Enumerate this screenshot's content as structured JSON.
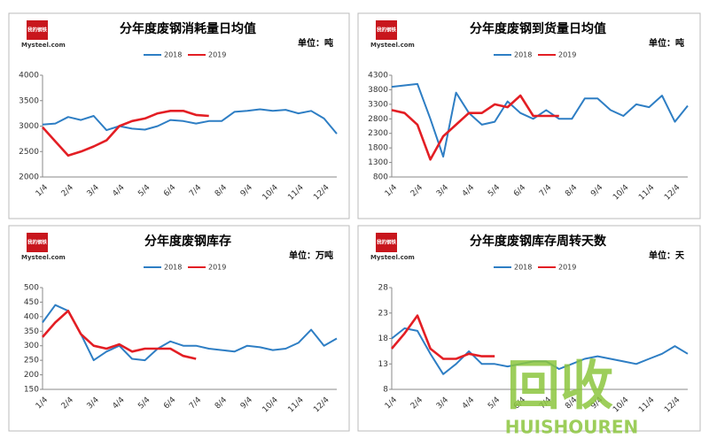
{
  "logo": {
    "mark": "我的钢铁",
    "site": "Mysteel.com"
  },
  "watermark": {
    "big": "回收",
    "small": "HUISHOUREN"
  },
  "chart_data": [
    {
      "type": "line",
      "title": "分年度废钢消耗量日均值",
      "unit": "单位：吨",
      "categories": [
        "1/4",
        null,
        "2/4",
        null,
        "3/4",
        null,
        "4/4",
        null,
        "5/4",
        null,
        "6/4",
        null,
        "7/4",
        null,
        "8/4",
        null,
        "9/4",
        null,
        "10/4",
        null,
        "11/4",
        null,
        "12/4",
        null
      ],
      "series": [
        {
          "name": "2018",
          "color": "#2e7ec4",
          "values": [
            3030,
            3050,
            3180,
            3120,
            3200,
            2920,
            3000,
            2950,
            2930,
            3000,
            3120,
            3100,
            3050,
            3100,
            3100,
            3280,
            3300,
            3330,
            3300,
            3320,
            3250,
            3300,
            3150,
            2850
          ]
        },
        {
          "name": "2019",
          "color": "#e31e24",
          "values": [
            2980,
            2700,
            2420,
            2500,
            2600,
            2720,
            3000,
            3100,
            3150,
            3250,
            3300,
            3300,
            3220,
            3200,
            null,
            null,
            null,
            null,
            null,
            null,
            null,
            null,
            null,
            null
          ]
        }
      ],
      "ylim": [
        2000,
        4000
      ],
      "yticks": [
        2000,
        2500,
        3000,
        3500,
        4000
      ]
    },
    {
      "type": "line",
      "title": "分年度废钢到货量日均值",
      "unit": "单位：吨",
      "categories": [
        "1/4",
        null,
        "2/4",
        null,
        "3/4",
        null,
        "4/4",
        null,
        "5/4",
        null,
        "6/4",
        null,
        "7/4",
        null,
        "8/4",
        null,
        "9/4",
        null,
        "10/4",
        null,
        "11/4",
        null,
        "12/4",
        null
      ],
      "series": [
        {
          "name": "2018",
          "color": "#2e7ec4",
          "values": [
            3900,
            3950,
            4000,
            2800,
            1500,
            3700,
            3000,
            2600,
            2700,
            3400,
            3000,
            2800,
            3100,
            2800,
            2800,
            3500,
            3500,
            3100,
            2900,
            3300,
            3200,
            3600,
            2700,
            3250
          ]
        },
        {
          "name": "2019",
          "color": "#e31e24",
          "values": [
            3100,
            3000,
            2600,
            1400,
            2200,
            2600,
            3000,
            3000,
            3300,
            3200,
            3600,
            2900,
            2900,
            2900,
            null,
            null,
            null,
            null,
            null,
            null,
            null,
            null,
            null,
            null
          ]
        }
      ],
      "ylim": [
        800,
        4300
      ],
      "yticks": [
        800,
        1300,
        1800,
        2300,
        2800,
        3300,
        3800,
        4300
      ]
    },
    {
      "type": "line",
      "title": "分年度废钢库存",
      "unit": "单位：万吨",
      "categories": [
        "1/4",
        null,
        "2/4",
        null,
        "3/4",
        null,
        "4/4",
        null,
        "5/4",
        null,
        "6/4",
        null,
        "7/4",
        null,
        "8/4",
        null,
        "9/4",
        null,
        "10/4",
        null,
        "11/4",
        null,
        "12/4",
        null
      ],
      "series": [
        {
          "name": "2018",
          "color": "#2e7ec4",
          "values": [
            380,
            440,
            420,
            340,
            250,
            280,
            300,
            255,
            250,
            290,
            315,
            300,
            300,
            290,
            285,
            280,
            300,
            295,
            285,
            290,
            310,
            355,
            300,
            325
          ]
        },
        {
          "name": "2019",
          "color": "#e31e24",
          "values": [
            330,
            380,
            420,
            340,
            300,
            290,
            305,
            280,
            290,
            290,
            290,
            265,
            255,
            null,
            null,
            null,
            null,
            null,
            null,
            null,
            null,
            null,
            null,
            null
          ]
        }
      ],
      "ylim": [
        150,
        500
      ],
      "yticks": [
        150,
        200,
        250,
        300,
        350,
        400,
        450,
        500
      ]
    },
    {
      "type": "line",
      "title": "分年度废钢库存周转天数",
      "unit": "单位：天",
      "categories": [
        "1/4",
        null,
        "2/4",
        null,
        "3/4",
        null,
        "4/4",
        null,
        "5/4",
        null,
        "6/4",
        null,
        "7/4",
        null,
        "8/4",
        null,
        "9/4",
        null,
        "10/4",
        null,
        "11/4",
        null,
        "12/4",
        null
      ],
      "series": [
        {
          "name": "2018",
          "color": "#2e7ec4",
          "values": [
            18,
            20,
            19.5,
            15,
            11,
            13,
            15.5,
            13,
            13,
            12.5,
            13,
            13.5,
            13.5,
            12,
            13,
            14,
            14.5,
            14,
            13.5,
            13,
            14,
            15,
            16.5,
            15
          ]
        },
        {
          "name": "2019",
          "color": "#e31e24",
          "values": [
            16,
            19,
            22.5,
            16,
            14,
            14,
            15,
            14.5,
            14.5,
            null,
            null,
            null,
            null,
            null,
            null,
            null,
            null,
            null,
            null,
            null,
            null,
            null,
            null,
            null
          ]
        }
      ],
      "ylim": [
        8,
        28
      ],
      "yticks": [
        8,
        13,
        18,
        23,
        28
      ]
    }
  ]
}
